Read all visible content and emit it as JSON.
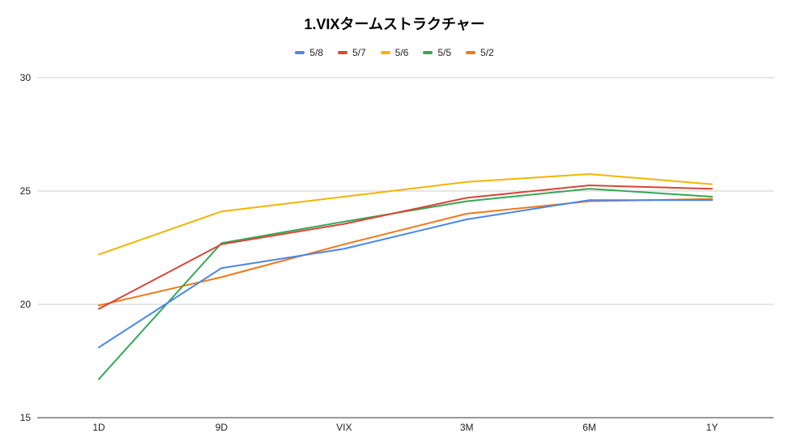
{
  "chart_data": {
    "type": "line",
    "title": "1.VIXタームストラクチャー",
    "xlabel": "",
    "ylabel": "",
    "categories": [
      "1D",
      "9D",
      "VIX",
      "3M",
      "6M",
      "1Y"
    ],
    "ylim": [
      15,
      30
    ],
    "yticks": [
      15,
      20,
      25,
      30
    ],
    "grid": true,
    "legend_position": "top",
    "series": [
      {
        "name": "5/8",
        "color": "#4a86e8",
        "values": [
          18.1,
          21.6,
          22.45,
          23.75,
          24.6,
          24.6
        ]
      },
      {
        "name": "5/7",
        "color": "#db4437",
        "values": [
          19.8,
          22.65,
          23.55,
          24.7,
          25.25,
          25.1
        ]
      },
      {
        "name": "5/6",
        "color": "#f4b400",
        "values": [
          22.2,
          24.1,
          24.75,
          25.4,
          25.75,
          25.3
        ]
      },
      {
        "name": "5/5",
        "color": "#34a853",
        "values": [
          16.7,
          22.7,
          23.65,
          24.55,
          25.1,
          24.75
        ]
      },
      {
        "name": "5/2",
        "color": "#f07818",
        "values": [
          19.95,
          21.2,
          22.65,
          24.0,
          24.55,
          24.65
        ]
      }
    ]
  }
}
